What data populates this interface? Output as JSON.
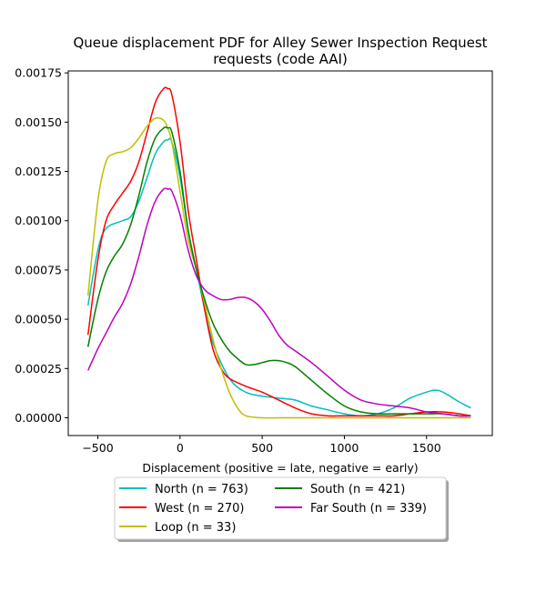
{
  "chart_data": {
    "type": "line",
    "title": [
      "Queue displacement PDF for Alley Sewer Inspection Request",
      "requests (code AAI)"
    ],
    "xlabel": "Displacement (positive = late, negative = early)",
    "ylabel": "",
    "xlim": [
      -680,
      1900
    ],
    "ylim": [
      -9e-05,
      0.00176
    ],
    "xticks": [
      {
        "value": -500,
        "label": "−500"
      },
      {
        "value": 0,
        "label": "0"
      },
      {
        "value": 500,
        "label": "500"
      },
      {
        "value": 1000,
        "label": "1000"
      },
      {
        "value": 1500,
        "label": "1500"
      }
    ],
    "yticks": [
      {
        "value": 0,
        "label": "0.00000"
      },
      {
        "value": 0.00025,
        "label": "0.00025"
      },
      {
        "value": 0.0005,
        "label": "0.00050"
      },
      {
        "value": 0.00075,
        "label": "0.00075"
      },
      {
        "value": 0.001,
        "label": "0.00100"
      },
      {
        "value": 0.00125,
        "label": "0.00125"
      },
      {
        "value": 0.0015,
        "label": "0.00150"
      },
      {
        "value": 0.00175,
        "label": "0.00175"
      }
    ],
    "legend_position": "below-center",
    "series": [
      {
        "name": "North (n = 763)",
        "color": "#00bfbf",
        "x": [
          -560,
          -500,
          -450,
          -350,
          -300,
          -250,
          -200,
          -150,
          -100,
          -75,
          -50,
          0,
          50,
          100,
          150,
          200,
          300,
          400,
          500,
          600,
          700,
          800,
          900,
          1000,
          1100,
          1200,
          1300,
          1400,
          1500,
          1550,
          1600,
          1700,
          1770
        ],
        "y": [
          0.00057,
          0.00085,
          0.00096,
          0.001,
          0.00102,
          0.0011,
          0.00122,
          0.00134,
          0.0014,
          0.00141,
          0.0014,
          0.00122,
          0.00095,
          0.00075,
          0.00055,
          0.00038,
          0.0002,
          0.00013,
          0.00011,
          0.0001,
          9e-05,
          6e-05,
          4e-05,
          2e-05,
          1e-05,
          2e-05,
          5e-05,
          0.0001,
          0.00013,
          0.00014,
          0.00013,
          8e-05,
          5e-05
        ]
      },
      {
        "name": "West (n = 270)",
        "color": "#ff0000",
        "x": [
          -560,
          -500,
          -450,
          -400,
          -350,
          -300,
          -250,
          -200,
          -150,
          -100,
          -75,
          -50,
          0,
          50,
          100,
          150,
          200,
          250,
          300,
          400,
          500,
          600,
          700,
          800,
          900,
          1000,
          1100,
          1200,
          1300,
          1400,
          1500,
          1600,
          1700,
          1770
        ],
        "y": [
          0.00042,
          0.0008,
          0.001,
          0.00108,
          0.00114,
          0.0012,
          0.0013,
          0.00145,
          0.0016,
          0.00167,
          0.00167,
          0.00164,
          0.0014,
          0.00105,
          0.0008,
          0.00055,
          0.00035,
          0.00025,
          0.0002,
          0.00016,
          0.00013,
          9e-05,
          5e-05,
          2e-05,
          1e-05,
          1e-05,
          1e-05,
          1e-05,
          1e-05,
          2e-05,
          3e-05,
          3e-05,
          2e-05,
          1e-05
        ]
      },
      {
        "name": "Loop (n = 33)",
        "color": "#bfbf00",
        "x": [
          -560,
          -500,
          -450,
          -400,
          -350,
          -300,
          -250,
          -200,
          -150,
          -100,
          -75,
          -50,
          0,
          50,
          100,
          150,
          200,
          250,
          300,
          350,
          400,
          500,
          600,
          700,
          1000,
          1500,
          1770
        ],
        "y": [
          0.00062,
          0.0011,
          0.0013,
          0.00134,
          0.00135,
          0.00137,
          0.00142,
          0.00148,
          0.00152,
          0.00151,
          0.00147,
          0.0014,
          0.00115,
          0.0009,
          0.00075,
          0.00058,
          0.0004,
          0.00025,
          0.00013,
          5e-05,
          1e-05,
          0.0,
          0.0,
          0.0,
          0.0,
          0.0,
          0.0
        ]
      },
      {
        "name": "South (n = 421)",
        "color": "#008000",
        "x": [
          -560,
          -500,
          -450,
          -400,
          -350,
          -300,
          -250,
          -200,
          -150,
          -100,
          -75,
          -50,
          0,
          50,
          100,
          150,
          200,
          250,
          300,
          350,
          400,
          450,
          500,
          550,
          600,
          650,
          700,
          800,
          900,
          1000,
          1100,
          1200,
          1300,
          1400,
          1500,
          1600,
          1700,
          1770
        ],
        "y": [
          0.00036,
          0.0006,
          0.00074,
          0.00082,
          0.00088,
          0.00098,
          0.00113,
          0.0013,
          0.00142,
          0.00147,
          0.00147,
          0.00145,
          0.00125,
          0.00095,
          0.00075,
          0.0006,
          0.00048,
          0.0004,
          0.00034,
          0.0003,
          0.00027,
          0.00027,
          0.00028,
          0.00029,
          0.00029,
          0.00028,
          0.00026,
          0.00019,
          0.00012,
          6e-05,
          3e-05,
          2e-05,
          2e-05,
          2e-05,
          2e-05,
          2e-05,
          1e-05,
          1e-05
        ]
      },
      {
        "name": "Far South (n = 339)",
        "color": "#bf00bf",
        "x": [
          -560,
          -500,
          -450,
          -400,
          -350,
          -300,
          -250,
          -200,
          -150,
          -100,
          -75,
          -50,
          0,
          50,
          100,
          150,
          200,
          250,
          300,
          350,
          400,
          450,
          500,
          550,
          600,
          650,
          700,
          800,
          900,
          1000,
          1100,
          1200,
          1300,
          1400,
          1500,
          1600,
          1700,
          1770
        ],
        "y": [
          0.00024,
          0.00035,
          0.00043,
          0.00051,
          0.00058,
          0.00068,
          0.00082,
          0.00098,
          0.0011,
          0.00116,
          0.00116,
          0.00115,
          0.00103,
          0.00085,
          0.00072,
          0.00065,
          0.00062,
          0.0006,
          0.0006,
          0.00061,
          0.00061,
          0.00059,
          0.00055,
          0.00049,
          0.00042,
          0.00037,
          0.00034,
          0.00028,
          0.00021,
          0.00014,
          9e-05,
          7e-05,
          6e-05,
          5e-05,
          3e-05,
          2e-05,
          1e-05,
          1e-05
        ]
      }
    ]
  }
}
